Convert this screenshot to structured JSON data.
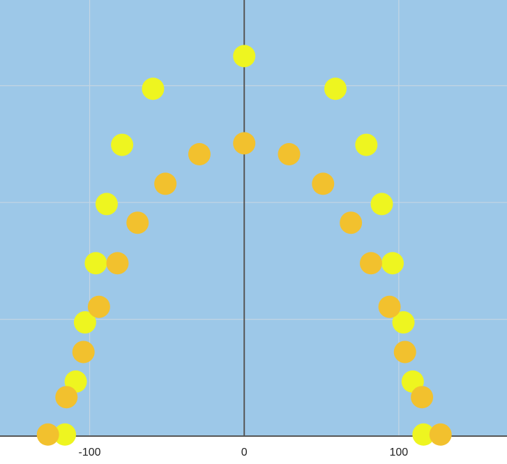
{
  "chart_data": {
    "type": "scatter",
    "title": "",
    "xlabel": "",
    "ylabel": "",
    "xlim": [
      -158,
      170
    ],
    "ylim": [
      0,
      280
    ],
    "x_ticks": [
      -100,
      0,
      100
    ],
    "x_tick_labels": [
      "-100",
      "0",
      "100"
    ],
    "y_gridlines": [
      0,
      75,
      150,
      225
    ],
    "grid": true,
    "legend": "none",
    "colors": {
      "plot_background": "#9dc8e8",
      "grid": "#c4d5e2",
      "axis": "#555555",
      "yellow": "#eef520",
      "orange": "#f2c12e"
    },
    "series": [
      {
        "color": "#eef520",
        "points": [
          [
            0,
            244
          ],
          [
            59,
            223
          ],
          [
            -59,
            223
          ],
          [
            79,
            187
          ],
          [
            -79,
            187
          ],
          [
            89,
            149
          ],
          [
            -89,
            149
          ],
          [
            96,
            111
          ],
          [
            -96,
            111
          ],
          [
            103,
            73
          ],
          [
            -103,
            73
          ],
          [
            109,
            35
          ],
          [
            -109,
            35
          ],
          [
            116,
            1
          ],
          [
            -116,
            1
          ]
        ]
      },
      {
        "color": "#f2c12e",
        "points": [
          [
            0,
            188
          ],
          [
            29,
            181
          ],
          [
            -29,
            181
          ],
          [
            51,
            162
          ],
          [
            -51,
            162
          ],
          [
            69,
            137
          ],
          [
            -69,
            137
          ],
          [
            82,
            111
          ],
          [
            -82,
            111
          ],
          [
            94,
            83
          ],
          [
            -94,
            83
          ],
          [
            104,
            54
          ],
          [
            -104,
            54
          ],
          [
            115,
            25
          ],
          [
            -115,
            25
          ],
          [
            127,
            1
          ],
          [
            -127,
            1
          ]
        ]
      }
    ]
  }
}
